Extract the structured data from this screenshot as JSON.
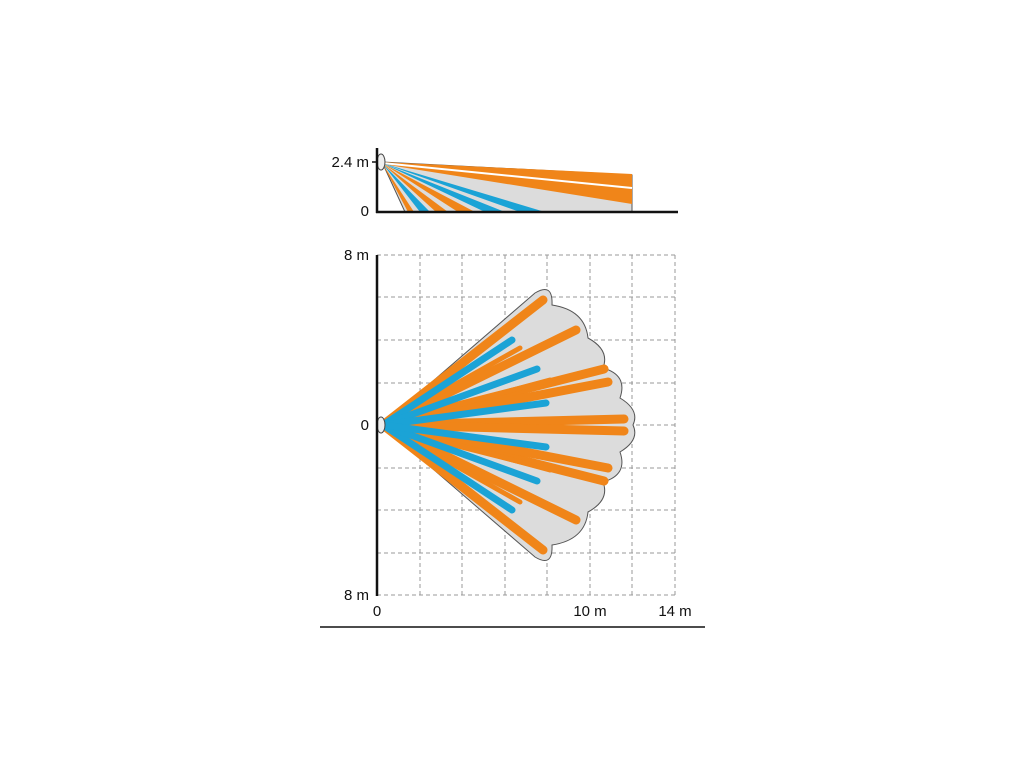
{
  "side_view": {
    "y_labels": [
      "2.4 m",
      "0"
    ]
  },
  "top_view": {
    "y_labels": [
      "8 m",
      "0",
      "8 m"
    ],
    "x_labels": [
      "0",
      "10 m",
      "14 m"
    ]
  }
}
